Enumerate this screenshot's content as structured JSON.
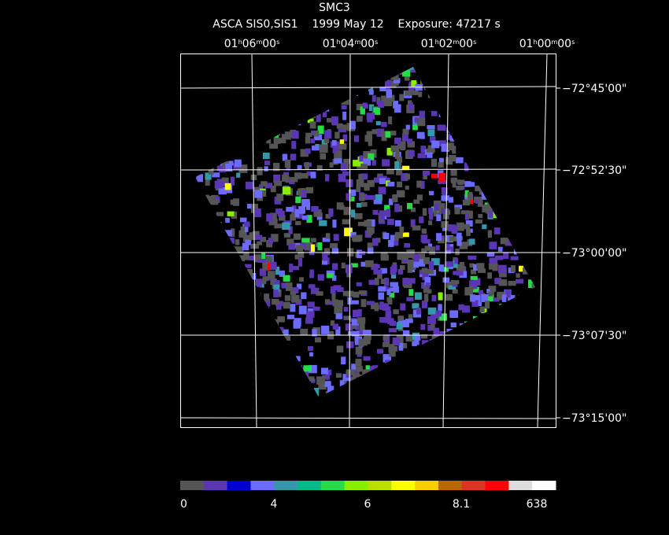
{
  "header": {
    "title": "SMC3",
    "subtitle": "ASCA SIS0,SIS1    1999 May 12    Exposure: 47217 s"
  },
  "ra_labels": [
    [
      "01",
      "h",
      "06",
      "m",
      "00",
      "s"
    ],
    [
      "01",
      "h",
      "04",
      "m",
      "00",
      "s"
    ],
    [
      "01",
      "h",
      "02",
      "m",
      "00",
      "s"
    ],
    [
      "01",
      "h",
      "00",
      "m",
      "00",
      "s"
    ]
  ],
  "dec_labels": [
    "−72°45'00\"",
    "−72°52'30\"",
    "−73°00'00\"",
    "−73°07'30\"",
    "−73°15'00\""
  ],
  "colorbar": {
    "colors": [
      "#555555",
      "#5a36b4",
      "#0000cc",
      "#6b6bff",
      "#3399aa",
      "#00bb88",
      "#22dd44",
      "#88ee00",
      "#bbdd00",
      "#ffff00",
      "#ffcc00",
      "#bb6600",
      "#dd3322",
      "#ff0000",
      "#dddddd",
      "#ffffff"
    ],
    "labels": [
      "0",
      "4",
      "6",
      "8.1",
      "638"
    ]
  }
}
